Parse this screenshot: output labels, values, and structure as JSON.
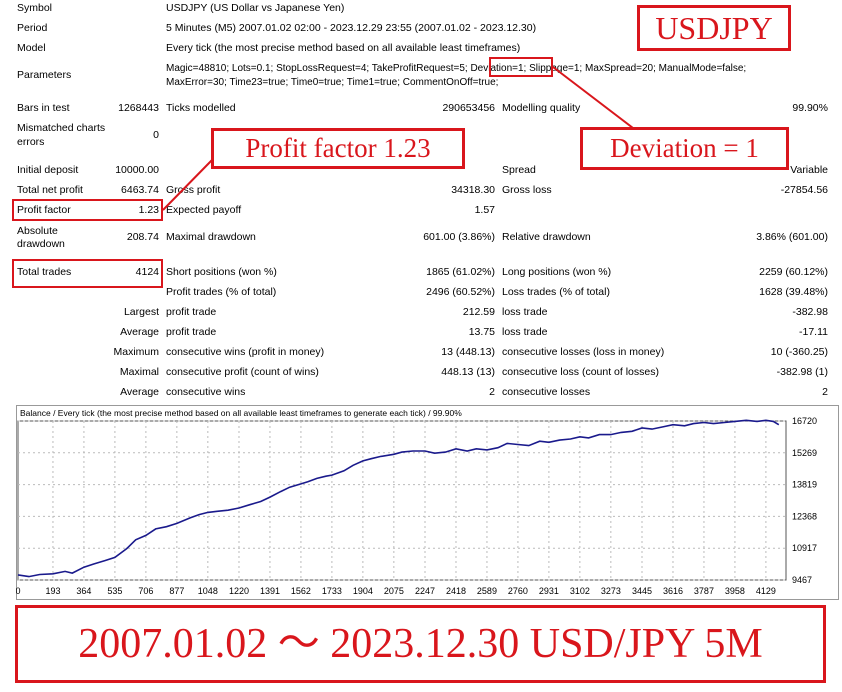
{
  "labels": {
    "symbol": "Symbol",
    "period": "Period",
    "model": "Model",
    "parameters": "Parameters",
    "bars_in_test": "Bars in test",
    "mismatched_1": "Mismatched charts",
    "mismatched_2": "errors",
    "ticks_modelled": "Ticks modelled",
    "modelling_quality": "Modelling quality",
    "initial_deposit": "Initial deposit",
    "spread": "Spread",
    "total_net_profit": "Total net profit",
    "gross_profit": "Gross profit",
    "gross_loss": "Gross loss",
    "profit_factor": "Profit factor",
    "expected_payoff": "Expected payoff",
    "absolute_1": "Absolute",
    "absolute_2": "drawdown",
    "maximal_drawdown": "Maximal drawdown",
    "relative_drawdown": "Relative drawdown",
    "total_trades": "Total trades",
    "short_positions": "Short positions (won %)",
    "long_positions": "Long positions (won %)",
    "profit_trades": "Profit trades (% of total)",
    "loss_trades": "Loss trades (% of total)",
    "largest": "Largest",
    "average": "Average",
    "maximum": "Maximum",
    "maximal": "Maximal",
    "average2": "Average",
    "profit_trade": "profit trade",
    "loss_trade": "loss trade",
    "profit_trade2": "profit trade",
    "loss_trade2": "loss trade",
    "cons_wins_money": "consecutive wins (profit in money)",
    "cons_losses_money": "consecutive losses (loss in money)",
    "cons_profit_count": "consecutive profit (count of wins)",
    "cons_loss_count": "consecutive loss (count of losses)",
    "cons_wins": "consecutive wins",
    "cons_losses": "consecutive losses"
  },
  "values": {
    "symbol": "USDJPY (US Dollar vs Japanese Yen)",
    "period": "5 Minutes (M5) 2007.01.02 02:00 - 2023.12.29 23:55 (2007.01.02 - 2023.12.30)",
    "model": "Every tick (the most precise method based on all available least timeframes)",
    "parameters_1": "Magic=48810; Lots=0.1; StopLossRequest=4; TakeProfitRequest=5; Deviation=1; Slippage=1; MaxSpread=20; ManualMode=false;",
    "parameters_2": "MaxError=30; Time23=true; Time0=true; Time1=true; CommentOnOff=true;",
    "bars_in_test": "1268443",
    "mismatched": "0",
    "ticks_modelled": "290653456",
    "modelling_quality": "99.90%",
    "initial_deposit": "10000.00",
    "spread": "Variable",
    "total_net_profit": "6463.74",
    "gross_profit": "34318.30",
    "gross_loss": "-27854.56",
    "profit_factor": "1.23",
    "expected_payoff": "1.57",
    "absolute_drawdown": "208.74",
    "maximal_drawdown": "601.00 (3.86%)",
    "relative_drawdown": "3.86% (601.00)",
    "total_trades": "4124",
    "short_positions": "1865 (61.02%)",
    "long_positions": "2259 (60.12%)",
    "profit_trades": "2496 (60.52%)",
    "loss_trades": "1628 (39.48%)",
    "largest_profit": "212.59",
    "largest_loss": "-382.98",
    "average_profit": "13.75",
    "average_loss": "-17.11",
    "max_cons_wins": "13 (448.13)",
    "max_cons_losses": "10 (-360.25)",
    "maximal_cons_profit": "448.13 (13)",
    "maximal_cons_loss": "-382.98 (1)",
    "avg_cons_wins": "2",
    "avg_cons_losses": "2"
  },
  "annotations": {
    "usdjpy": "USDJPY",
    "profit_factor": "Profit factor 1.23",
    "deviation": "Deviation = 1",
    "bottom": "2007.01.02 ～ 2023.12.30 USD/JPY 5M",
    "color": "#d9161c"
  },
  "chart_data": {
    "type": "line",
    "title": "Balance / Every tick (the most precise method based on all available least timeframes to generate each tick) / 99.90%",
    "x_ticks": [
      "0",
      "193",
      "364",
      "535",
      "706",
      "877",
      "1048",
      "1220",
      "1391",
      "1562",
      "1733",
      "1904",
      "2075",
      "2247",
      "2418",
      "2589",
      "2760",
      "2931",
      "3102",
      "3273",
      "3445",
      "3616",
      "3787",
      "3958",
      "4129"
    ],
    "y_ticks": [
      "16720",
      "15269",
      "13819",
      "12368",
      "10917",
      "9467"
    ],
    "xlim": [
      0,
      4240
    ],
    "ylim": [
      9467,
      16720
    ],
    "grid": true,
    "line_color": "#1a1a8c",
    "series": [
      {
        "x": [
          0,
          60,
          120,
          193,
          260,
          300,
          364,
          420,
          480,
          535,
          600,
          650,
          706,
          760,
          820,
          877,
          950,
          1000,
          1048,
          1100,
          1160,
          1220,
          1280,
          1340,
          1391,
          1450,
          1500,
          1562,
          1600,
          1650,
          1700,
          1733,
          1800,
          1850,
          1904,
          1950,
          2000,
          2075,
          2120,
          2180,
          2247,
          2300,
          2360,
          2418,
          2480,
          2530,
          2589,
          2650,
          2700,
          2760,
          2820,
          2880,
          2931,
          2990,
          3050,
          3102,
          3150,
          3210,
          3273,
          3330,
          3390,
          3445,
          3500,
          3560,
          3616,
          3680,
          3730,
          3787,
          3840,
          3900,
          3958,
          4020,
          4080,
          4129,
          4170,
          4200
        ],
        "y": [
          9700,
          9620,
          9720,
          9750,
          9860,
          9780,
          10050,
          10200,
          10350,
          10500,
          10900,
          11300,
          11500,
          11800,
          11900,
          12050,
          12300,
          12450,
          12550,
          12600,
          12650,
          12750,
          12900,
          13050,
          13250,
          13500,
          13700,
          13850,
          13950,
          14100,
          14200,
          14250,
          14450,
          14700,
          14900,
          15000,
          15100,
          15200,
          15300,
          15350,
          15350,
          15250,
          15300,
          15450,
          15350,
          15450,
          15400,
          15500,
          15700,
          15650,
          15600,
          15800,
          15750,
          15850,
          15900,
          16000,
          15950,
          16100,
          16100,
          16200,
          16250,
          16400,
          16350,
          16450,
          16550,
          16500,
          16600,
          16650,
          16600,
          16650,
          16700,
          16750,
          16700,
          16750,
          16700,
          16550
        ]
      }
    ]
  }
}
